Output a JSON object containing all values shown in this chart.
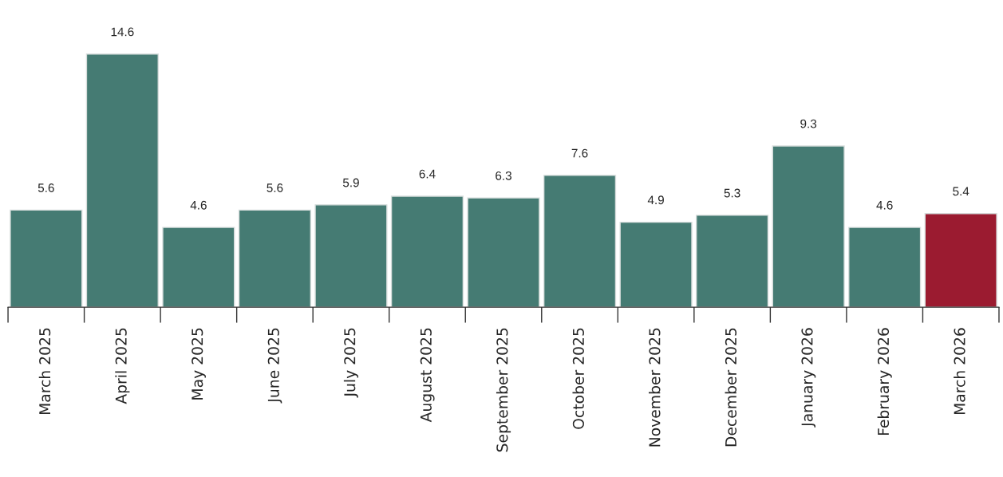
{
  "chart_data": {
    "type": "bar",
    "categories": [
      "March 2025",
      "April 2025",
      "May 2025",
      "June 2025",
      "July 2025",
      "August 2025",
      "September 2025",
      "October 2025",
      "November 2025",
      "December 2025",
      "January 2026",
      "February 2026",
      "March 2026"
    ],
    "values": [
      5.6,
      14.6,
      4.6,
      5.6,
      5.9,
      6.4,
      6.3,
      7.6,
      4.9,
      5.3,
      9.3,
      4.6,
      5.4
    ],
    "colors": [
      "#457b73",
      "#457b73",
      "#457b73",
      "#457b73",
      "#457b73",
      "#457b73",
      "#457b73",
      "#457b73",
      "#457b73",
      "#457b73",
      "#457b73",
      "#457b73",
      "#9b1b30"
    ],
    "data_labels": true,
    "grid": false,
    "legend": false
  }
}
